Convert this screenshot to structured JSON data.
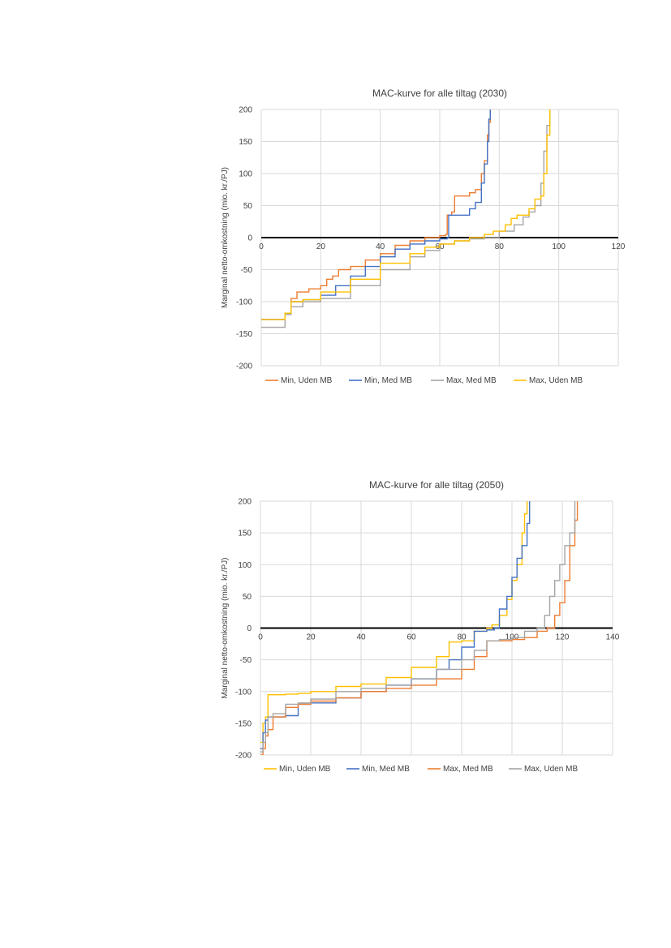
{
  "chart_data": [
    {
      "type": "line",
      "title": "MAC-kurve for alle tiltag (2030)",
      "xlabel": "",
      "ylabel": "Marginal netto-omkostning (mio. kr./PJ)",
      "xlim": [
        0,
        120
      ],
      "ylim": [
        -200,
        200
      ],
      "xticks": [
        "0",
        "20",
        "40",
        "60",
        "80",
        "100",
        "120"
      ],
      "yticks": [
        "200",
        "150",
        "100",
        "50",
        "0",
        "-50",
        "-100",
        "-150",
        "-200"
      ],
      "grid": true,
      "legend_position": "bottom",
      "series": [
        {
          "name": "Min, Uden MB",
          "color": "#ED7D31",
          "x": [
            0,
            8,
            10,
            12,
            16,
            20,
            22,
            24,
            26,
            30,
            35,
            40,
            45,
            50,
            55,
            60,
            62,
            62.5,
            64,
            65,
            68,
            70,
            72,
            74,
            75,
            76,
            76.5,
            77
          ],
          "y": [
            -128,
            -118,
            -95,
            -85,
            -80,
            -75,
            -65,
            -60,
            -50,
            -45,
            -35,
            -25,
            -12,
            -5,
            0,
            3,
            5,
            35,
            40,
            65,
            65,
            70,
            75,
            100,
            120,
            160,
            180,
            200
          ]
        },
        {
          "name": "Min, Med MB",
          "color": "#4472C4",
          "x": [
            0,
            8,
            10,
            14,
            20,
            25,
            30,
            35,
            40,
            45,
            50,
            55,
            60,
            62.5,
            63,
            65,
            68,
            70,
            72,
            74,
            75,
            76,
            76.5,
            77
          ],
          "y": [
            -128,
            -118,
            -100,
            -97,
            -90,
            -75,
            -60,
            -45,
            -30,
            -18,
            -10,
            -5,
            -2,
            0,
            35,
            35,
            35,
            45,
            55,
            85,
            115,
            150,
            185,
            200
          ]
        },
        {
          "name": "Max, Med MB",
          "color": "#A5A5A5",
          "x": [
            0,
            8,
            10,
            14,
            20,
            30,
            40,
            50,
            55,
            60,
            65,
            70,
            75,
            80,
            85,
            88,
            90,
            92,
            94,
            95,
            96,
            97
          ],
          "y": [
            -140,
            -120,
            -108,
            -100,
            -95,
            -75,
            -50,
            -30,
            -20,
            -10,
            -5,
            -2,
            0,
            10,
            20,
            32,
            40,
            50,
            85,
            135,
            175,
            200
          ]
        },
        {
          "name": "Max, Uden MB",
          "color": "#FFC000",
          "x": [
            0,
            8,
            10,
            14,
            20,
            30,
            40,
            50,
            55,
            60,
            65,
            70,
            75,
            78,
            80,
            82,
            84,
            86,
            88,
            90,
            92,
            94,
            95,
            96,
            97
          ],
          "y": [
            -128,
            -118,
            -100,
            -97,
            -85,
            -65,
            -40,
            -25,
            -15,
            -10,
            -5,
            0,
            5,
            10,
            10,
            20,
            30,
            35,
            35,
            45,
            60,
            65,
            100,
            160,
            200
          ]
        }
      ]
    },
    {
      "type": "line",
      "title": "MAC-kurve for alle tiltag (2050)",
      "xlabel": "",
      "ylabel": "Marginal netto-omkostning (mio. kr./PJ)",
      "xlim": [
        0,
        140
      ],
      "ylim": [
        -200,
        200
      ],
      "xticks": [
        "0",
        "20",
        "40",
        "60",
        "80",
        "100",
        "120",
        "140"
      ],
      "yticks": [
        "200",
        "150",
        "100",
        "50",
        "0",
        "-50",
        "-100",
        "-150",
        "-200"
      ],
      "grid": true,
      "legend_position": "bottom",
      "series": [
        {
          "name": "Min, Uden MB",
          "color": "#FFC000",
          "x": [
            0,
            1,
            2,
            3,
            5,
            10,
            15,
            20,
            30,
            40,
            50,
            60,
            70,
            75,
            80,
            85,
            90,
            92,
            95,
            98,
            100,
            102,
            104,
            105,
            106
          ],
          "y": [
            -180,
            -150,
            -140,
            -105,
            -105,
            -104,
            -103,
            -100,
            -92,
            -88,
            -78,
            -62,
            -45,
            -22,
            -20,
            -5,
            0,
            5,
            20,
            45,
            75,
            100,
            150,
            180,
            200
          ]
        },
        {
          "name": "Min, Med MB",
          "color": "#4472C4",
          "x": [
            0,
            1,
            2,
            3,
            5,
            10,
            15,
            20,
            30,
            40,
            50,
            60,
            70,
            75,
            80,
            85,
            90,
            93,
            95,
            98,
            100,
            102,
            104,
            106,
            107
          ],
          "y": [
            -190,
            -165,
            -145,
            -140,
            -140,
            -138,
            -120,
            -118,
            -110,
            -100,
            -90,
            -80,
            -65,
            -50,
            -30,
            -5,
            -3,
            0,
            30,
            50,
            80,
            110,
            130,
            165,
            200
          ]
        },
        {
          "name": "Max, Med MB",
          "color": "#ED7D31",
          "x": [
            0,
            1,
            2,
            3,
            5,
            10,
            15,
            20,
            30,
            40,
            50,
            60,
            70,
            80,
            85,
            90,
            95,
            100,
            105,
            110,
            114,
            117,
            119,
            121,
            123,
            125,
            126
          ],
          "y": [
            -200,
            -190,
            -170,
            -160,
            -140,
            -125,
            -120,
            -115,
            -110,
            -100,
            -95,
            -90,
            -80,
            -65,
            -45,
            -20,
            -20,
            -18,
            -15,
            -5,
            0,
            20,
            40,
            75,
            130,
            170,
            200
          ]
        },
        {
          "name": "Max, Uden MB",
          "color": "#A5A5A5",
          "x": [
            0,
            1,
            2,
            3,
            5,
            10,
            15,
            20,
            30,
            40,
            50,
            60,
            70,
            80,
            85,
            90,
            95,
            100,
            105,
            110,
            113,
            115,
            117,
            119,
            121,
            123,
            125
          ],
          "y": [
            -195,
            -180,
            -165,
            -140,
            -135,
            -120,
            -118,
            -112,
            -100,
            -95,
            -90,
            -80,
            -65,
            -50,
            -35,
            -20,
            -18,
            -15,
            -5,
            0,
            20,
            50,
            75,
            100,
            130,
            150,
            200
          ]
        }
      ]
    }
  ]
}
